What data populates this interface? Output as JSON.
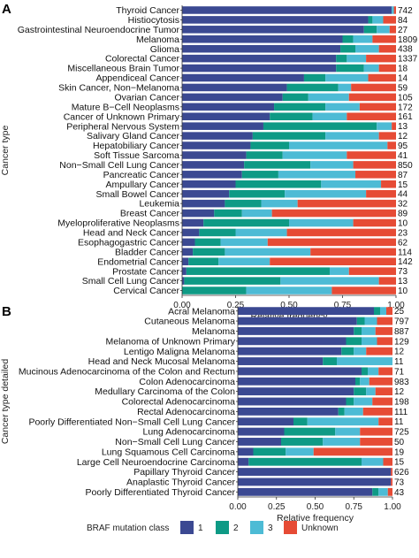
{
  "legend": {
    "title": "BRAF mutation class",
    "items": [
      {
        "label": "1",
        "color": "#3B4992"
      },
      {
        "label": "2",
        "color": "#0E9A85"
      },
      {
        "label": "3",
        "color": "#4DBBD5"
      },
      {
        "label": "Unknown",
        "color": "#E64B35"
      }
    ]
  },
  "chart_data": [
    {
      "type": "bar",
      "orientation": "horizontal",
      "stacked": true,
      "panel": "A",
      "xlabel": "Relative frequency",
      "ylabel": "Cancer type",
      "xlim": [
        0,
        1
      ],
      "xticks": [
        "0.00",
        "0.25",
        "0.50",
        "0.75",
        "1.00"
      ],
      "categories": [
        "Thyroid Cancer",
        "Histiocytosis",
        "Gastrointestinal Neuroendocrine Tumor",
        "Melanoma",
        "Glioma",
        "Colorectal Cancer",
        "Miscellaneous Brain Tumor",
        "Appendiceal Cancer",
        "Skin Cancer, Non−Melanoma",
        "Ovarian Cancer",
        "Mature B−Cell Neoplasms",
        "Cancer of Unknown Primary",
        "Peripheral Nervous System",
        "Salivary Gland Cancer",
        "Hepatobiliary Cancer",
        "Soft Tissue Sarcoma",
        "Non−Small Cell Lung Cancer",
        "Pancreatic Cancer",
        "Ampullary Cancer",
        "Small Bowel Cancer",
        "Leukemia",
        "Breast Cancer",
        "Myeloproliferative Neoplasms",
        "Head and Neck Cancer",
        "Esophagogastric Cancer",
        "Bladder Cancer",
        "Endometrial Cancer",
        "Prostate Cancer",
        "Small Cell Lung Cancer",
        "Cervical Cancer"
      ],
      "counts": [
        "742",
        "84",
        "27",
        "1809",
        "438",
        "1337",
        "18",
        "14",
        "59",
        "105",
        "172",
        "161",
        "13",
        "12",
        "95",
        "41",
        "850",
        "87",
        "15",
        "44",
        "32",
        "89",
        "10",
        "23",
        "62",
        "114",
        "142",
        "73",
        "13",
        "10"
      ],
      "series": [
        {
          "name": "1",
          "values": [
            0.98,
            0.87,
            0.85,
            0.75,
            0.74,
            0.72,
            0.72,
            0.57,
            0.49,
            0.47,
            0.43,
            0.41,
            0.38,
            0.33,
            0.32,
            0.3,
            0.29,
            0.28,
            0.25,
            0.22,
            0.2,
            0.15,
            0.1,
            0.08,
            0.06,
            0.05,
            0.03,
            0.02,
            0.01,
            0.0
          ]
        },
        {
          "name": "2",
          "values": [
            0.0,
            0.02,
            0.06,
            0.05,
            0.07,
            0.05,
            0.13,
            0.1,
            0.24,
            0.12,
            0.24,
            0.2,
            0.53,
            0.34,
            0.18,
            0.17,
            0.31,
            0.17,
            0.4,
            0.26,
            0.17,
            0.13,
            0.4,
            0.17,
            0.12,
            0.15,
            0.14,
            0.67,
            0.45,
            0.3
          ]
        },
        {
          "name": "3",
          "values": [
            0.01,
            0.05,
            0.06,
            0.09,
            0.11,
            0.09,
            0.07,
            0.2,
            0.06,
            0.19,
            0.16,
            0.16,
            0.07,
            0.25,
            0.46,
            0.3,
            0.2,
            0.36,
            0.28,
            0.38,
            0.17,
            0.14,
            0.3,
            0.24,
            0.22,
            0.4,
            0.24,
            0.09,
            0.46,
            0.4
          ]
        },
        {
          "name": "Unknown",
          "values": [
            0.01,
            0.06,
            0.03,
            0.11,
            0.08,
            0.14,
            0.08,
            0.13,
            0.21,
            0.22,
            0.17,
            0.23,
            0.02,
            0.08,
            0.04,
            0.23,
            0.2,
            0.19,
            0.07,
            0.14,
            0.46,
            0.58,
            0.2,
            0.51,
            0.6,
            0.4,
            0.59,
            0.22,
            0.08,
            0.3
          ]
        }
      ]
    },
    {
      "type": "bar",
      "orientation": "horizontal",
      "stacked": true,
      "panel": "B",
      "xlabel": "Relative frequency",
      "ylabel": "Cancer type detailed",
      "xlim": [
        0,
        1
      ],
      "xticks": [
        "0.00",
        "0.25",
        "0.50",
        "0.75",
        "1.00"
      ],
      "categories": [
        "Acral Melanoma",
        "Cutaneous Melanoma",
        "Melanoma",
        "Melanoma of Unknown Primary",
        "Lentigo Maligna Melanoma",
        "Head and Neck Mucosal Melanoma",
        "Mucinous Adenocarcinoma of the Colon and Rectum",
        "Colon Adenocarcinoma",
        "Medullary Carcinoma of the Colon",
        "Colorectal Adenocarcinoma",
        "Rectal Adenocarcinoma",
        "Poorly Differentiated Non−Small Cell Lung Cancer",
        "Lung Adenocarcinoma",
        "Non−Small Cell Lung Cancer",
        "Lung Squamous Cell Carcinoma",
        "Large Cell Neuroendocrine Carcinoma",
        "Papillary Thyroid Cancer",
        "Anaplastic Thyroid Cancer",
        "Poorly Differentiated Thyroid Cancer"
      ],
      "counts": [
        "25",
        "797",
        "887",
        "129",
        "12",
        "11",
        "71",
        "983",
        "12",
        "198",
        "111",
        "11",
        "725",
        "50",
        "19",
        "15",
        "626",
        "73",
        "43"
      ],
      "series": [
        {
          "name": "1",
          "values": [
            0.88,
            0.77,
            0.75,
            0.7,
            0.67,
            0.55,
            0.8,
            0.76,
            0.75,
            0.7,
            0.65,
            0.36,
            0.3,
            0.28,
            0.1,
            0.07,
            0.99,
            0.99,
            0.87
          ]
        },
        {
          "name": "2",
          "values": [
            0.04,
            0.05,
            0.05,
            0.1,
            0.08,
            0.09,
            0.04,
            0.03,
            0.08,
            0.05,
            0.04,
            0.09,
            0.33,
            0.27,
            0.21,
            0.73,
            0.0,
            0.0,
            0.04
          ]
        },
        {
          "name": "3",
          "values": [
            0.04,
            0.08,
            0.09,
            0.1,
            0.08,
            0.36,
            0.07,
            0.06,
            0.06,
            0.12,
            0.12,
            0.46,
            0.16,
            0.24,
            0.18,
            0.14,
            0.0,
            0.0,
            0.06
          ]
        },
        {
          "name": "Unknown",
          "values": [
            0.04,
            0.1,
            0.11,
            0.1,
            0.17,
            0.0,
            0.09,
            0.15,
            0.11,
            0.13,
            0.19,
            0.09,
            0.21,
            0.21,
            0.51,
            0.06,
            0.01,
            0.01,
            0.03
          ]
        }
      ]
    }
  ]
}
